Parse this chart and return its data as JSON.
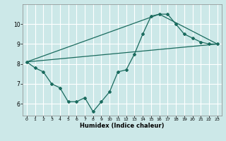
{
  "title": "",
  "xlabel": "Humidex (Indice chaleur)",
  "ylabel": "",
  "bg_color": "#cce8e8",
  "line_color": "#1a6b5e",
  "grid_color": "#ffffff",
  "xlim": [
    -0.5,
    23.5
  ],
  "ylim": [
    5.4,
    11.0
  ],
  "yticks": [
    6,
    7,
    8,
    9,
    10
  ],
  "xticks": [
    0,
    1,
    2,
    3,
    4,
    5,
    6,
    7,
    8,
    9,
    10,
    11,
    12,
    13,
    14,
    15,
    16,
    17,
    18,
    19,
    20,
    21,
    22,
    23
  ],
  "series": [
    {
      "x": [
        0,
        1,
        2,
        3,
        4,
        5,
        6,
        7,
        8,
        9,
        10,
        11,
        12,
        13,
        14,
        15,
        16,
        17,
        18,
        19,
        20,
        21,
        22,
        23
      ],
      "y": [
        8.1,
        7.8,
        7.6,
        7.0,
        6.8,
        6.1,
        6.1,
        6.3,
        5.6,
        6.1,
        6.6,
        7.6,
        7.7,
        8.5,
        9.5,
        10.4,
        10.5,
        10.5,
        10.0,
        9.5,
        9.3,
        9.1,
        9.0,
        9.0
      ]
    },
    {
      "x": [
        0,
        16,
        23
      ],
      "y": [
        8.1,
        10.5,
        9.0
      ]
    },
    {
      "x": [
        0,
        23
      ],
      "y": [
        8.1,
        9.0
      ]
    }
  ]
}
